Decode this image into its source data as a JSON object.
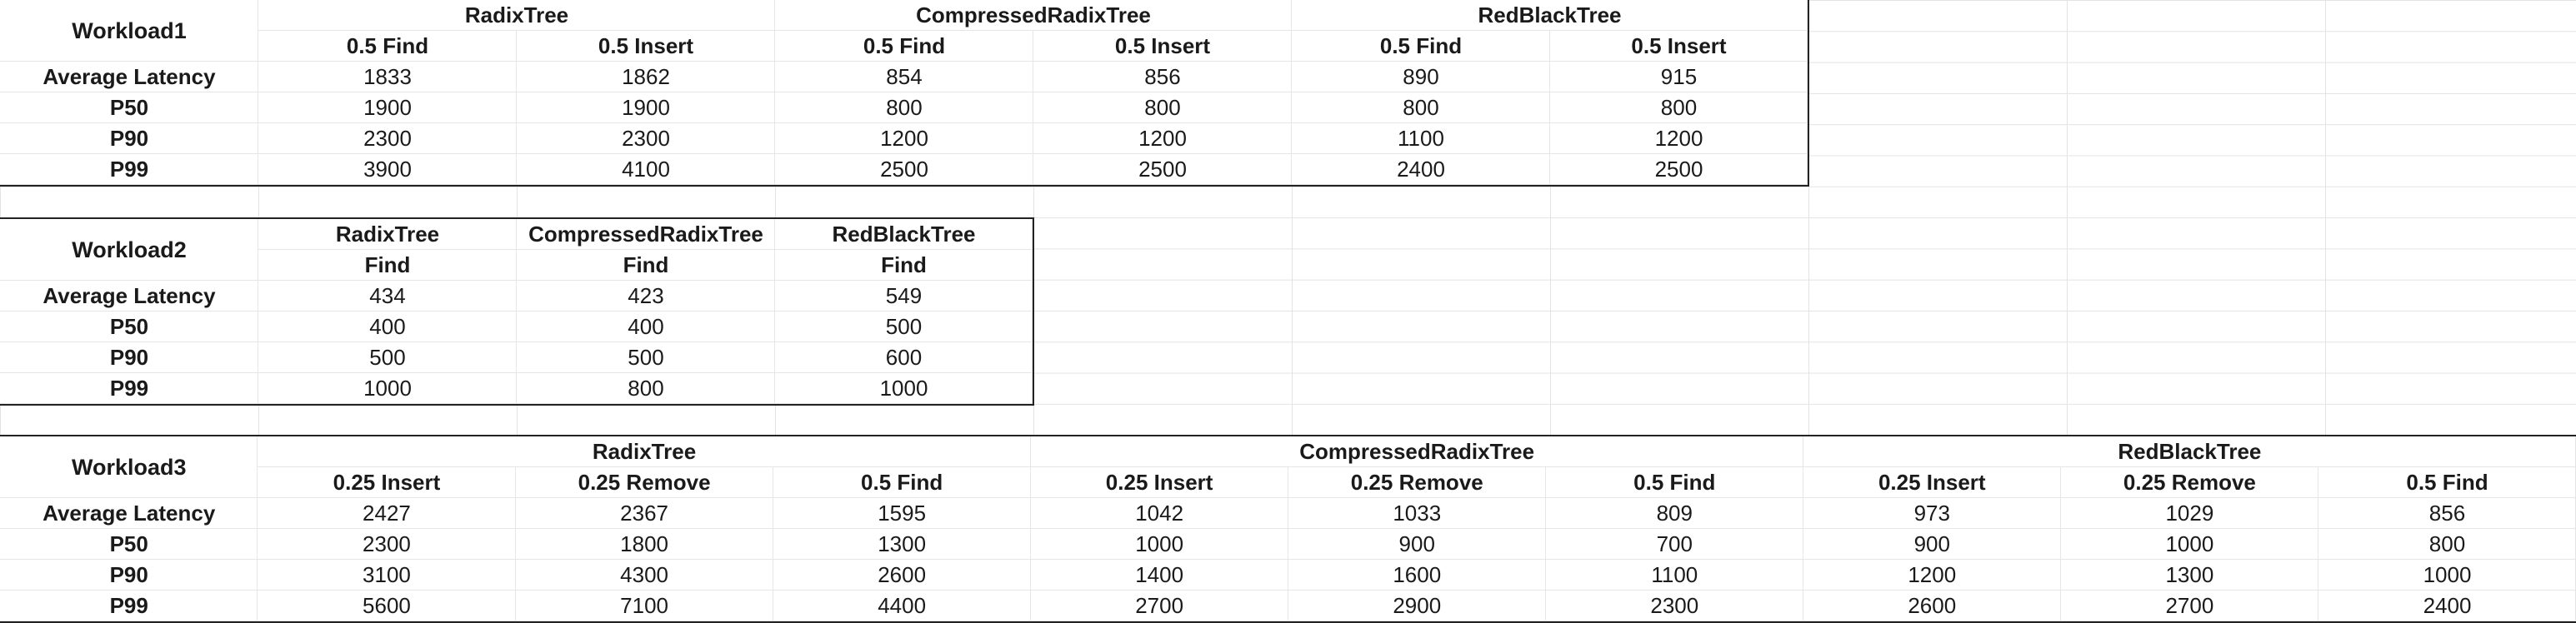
{
  "workload1": {
    "title": "Workload1",
    "groups": [
      "RadixTree",
      "CompressedRadixTree",
      "RedBlackTree"
    ],
    "subheaders": [
      "0.5 Find",
      "0.5 Insert",
      "0.5 Find",
      "0.5 Insert",
      "0.5 Find",
      "0.5 Insert"
    ],
    "rows": [
      {
        "label": "Average Latency",
        "values": [
          "1833",
          "1862",
          "854",
          "856",
          "890",
          "915"
        ]
      },
      {
        "label": "P50",
        "values": [
          "1900",
          "1900",
          "800",
          "800",
          "800",
          "800"
        ]
      },
      {
        "label": "P90",
        "values": [
          "2300",
          "2300",
          "1200",
          "1200",
          "1100",
          "1200"
        ]
      },
      {
        "label": "P99",
        "values": [
          "3900",
          "4100",
          "2500",
          "2500",
          "2400",
          "2500"
        ]
      }
    ]
  },
  "workload2": {
    "title": "Workload2",
    "groups": [
      "RadixTree",
      "CompressedRadixTree",
      "RedBlackTree"
    ],
    "subheaders": [
      "Find",
      "Find",
      "Find"
    ],
    "rows": [
      {
        "label": "Average Latency",
        "values": [
          "434",
          "423",
          "549"
        ]
      },
      {
        "label": "P50",
        "values": [
          "400",
          "400",
          "500"
        ]
      },
      {
        "label": "P90",
        "values": [
          "500",
          "500",
          "600"
        ]
      },
      {
        "label": "P99",
        "values": [
          "1000",
          "800",
          "1000"
        ]
      }
    ]
  },
  "workload3": {
    "title": "Workload3",
    "groups": [
      "RadixTree",
      "CompressedRadixTree",
      "RedBlackTree"
    ],
    "subheaders": [
      "0.25 Insert",
      "0.25 Remove",
      "0.5 Find",
      "0.25 Insert",
      "0.25 Remove",
      "0.5 Find",
      "0.25 Insert",
      "0.25 Remove",
      "0.5 Find"
    ],
    "rows": [
      {
        "label": "Average Latency",
        "values": [
          "2427",
          "2367",
          "1595",
          "1042",
          "1033",
          "809",
          "973",
          "1029",
          "856"
        ]
      },
      {
        "label": "P50",
        "values": [
          "2300",
          "1800",
          "1300",
          "1000",
          "900",
          "700",
          "900",
          "1000",
          "800"
        ]
      },
      {
        "label": "P90",
        "values": [
          "3100",
          "4300",
          "2600",
          "1400",
          "1600",
          "1100",
          "1200",
          "1300",
          "1000"
        ]
      },
      {
        "label": "P99",
        "values": [
          "5600",
          "7100",
          "4400",
          "2700",
          "2900",
          "2300",
          "2600",
          "2700",
          "2400"
        ]
      }
    ]
  }
}
